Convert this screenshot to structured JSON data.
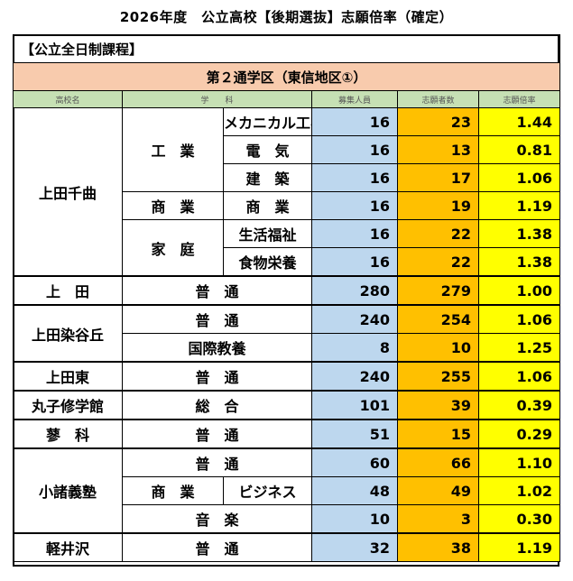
{
  "title": "2026年度　公立高校【後期選抜】志願倍率（確定）",
  "category": "【公立全日制課程】",
  "district": "第２通学区（東信地区①）",
  "headers": {
    "school": "高校名",
    "department": "学　　科",
    "capacity": "募集人員",
    "applicants": "志願者数",
    "ratio": "志願倍率"
  },
  "schools": {
    "uedachikuma": {
      "name": "上田千曲",
      "kogyo": "工　業",
      "shogyo": "商　業",
      "katei": "家　庭",
      "rows": [
        {
          "dept": "メカニカル工学",
          "capacity": "16",
          "applicants": "23",
          "ratio": "1.44"
        },
        {
          "dept": "電　気",
          "capacity": "16",
          "applicants": "13",
          "ratio": "0.81"
        },
        {
          "dept": "建　築",
          "capacity": "16",
          "applicants": "17",
          "ratio": "1.06"
        },
        {
          "dept": "商　業",
          "capacity": "16",
          "applicants": "19",
          "ratio": "1.19"
        },
        {
          "dept": "生活福祉",
          "capacity": "16",
          "applicants": "22",
          "ratio": "1.38"
        },
        {
          "dept": "食物栄養",
          "capacity": "16",
          "applicants": "22",
          "ratio": "1.38"
        }
      ]
    },
    "ueda": {
      "name": "上　田",
      "dept": "普　通",
      "capacity": "280",
      "applicants": "279",
      "ratio": "1.00"
    },
    "uedasomeya": {
      "name": "上田染谷丘",
      "rows": [
        {
          "dept": "普　通",
          "capacity": "240",
          "applicants": "254",
          "ratio": "1.06"
        },
        {
          "dept": "国際教養",
          "capacity": "8",
          "applicants": "10",
          "ratio": "1.25"
        }
      ]
    },
    "uedahigashi": {
      "name": "上田東",
      "dept": "普　通",
      "capacity": "240",
      "applicants": "255",
      "ratio": "1.06"
    },
    "marukoshugakukan": {
      "name": "丸子修学館",
      "dept": "総　合",
      "capacity": "101",
      "applicants": "39",
      "ratio": "0.39"
    },
    "tateshina": {
      "name": "蓼　科",
      "dept": "普　通",
      "capacity": "51",
      "applicants": "15",
      "ratio": "0.29"
    },
    "komorogijuku": {
      "name": "小諸義塾",
      "shogyo": "商　業",
      "rows": [
        {
          "dept": "普　通",
          "capacity": "60",
          "applicants": "66",
          "ratio": "1.10"
        },
        {
          "dept": "ビジネス",
          "capacity": "48",
          "applicants": "49",
          "ratio": "1.02"
        },
        {
          "dept": "音　楽",
          "capacity": "10",
          "applicants": "3",
          "ratio": "0.30"
        }
      ]
    },
    "karuizawa": {
      "name": "軽井沢",
      "dept": "普　通",
      "capacity": "32",
      "applicants": "38",
      "ratio": "1.19"
    }
  }
}
